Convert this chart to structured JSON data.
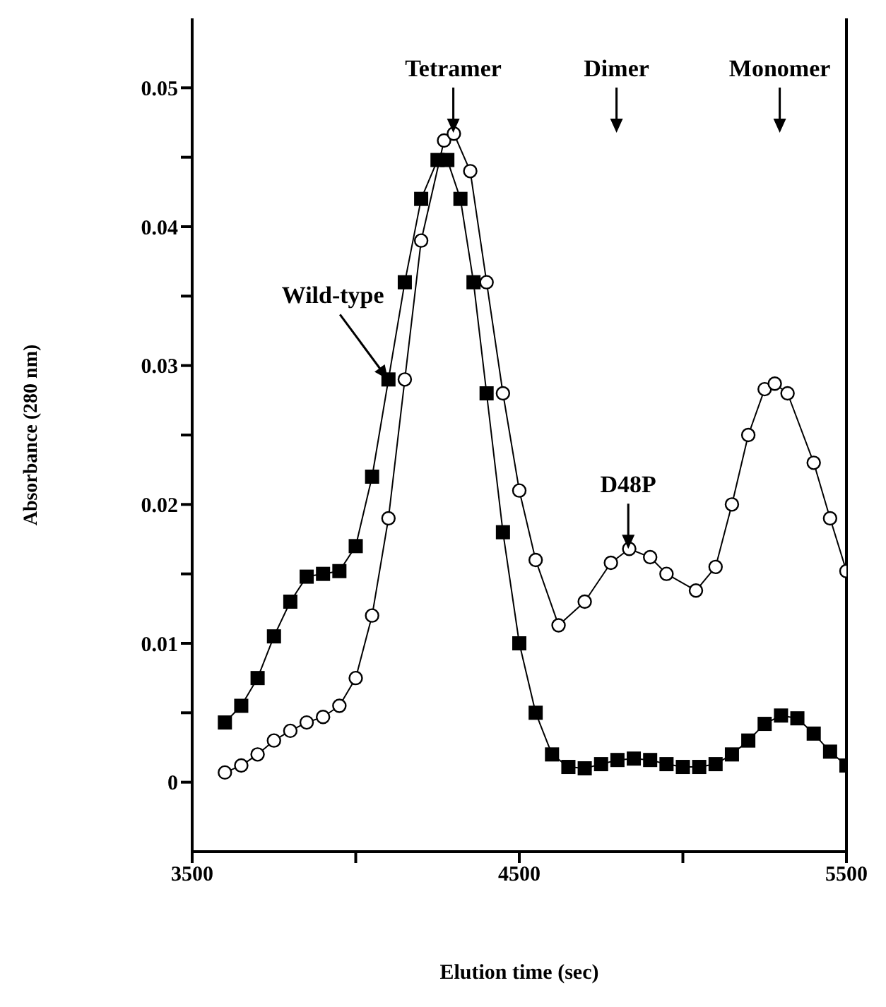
{
  "chart_data": {
    "type": "line",
    "xlabel": "Elution time (sec)",
    "ylabel": "Absorbance (280 nm)",
    "xlim": [
      3500,
      5500
    ],
    "xticks": [
      3500,
      {
        "value": 4000,
        "label": null
      },
      4500,
      {
        "value": 5000,
        "label": null
      },
      5500
    ],
    "ylim": [
      -0.005,
      0.055
    ],
    "yticks": [
      0,
      {
        "value": 0.005,
        "label": null
      },
      0.01,
      {
        "value": 0.015,
        "label": null
      },
      0.02,
      {
        "value": 0.025,
        "label": null
      },
      0.03,
      {
        "value": 0.035,
        "label": null
      },
      0.04,
      {
        "value": 0.045,
        "label": null
      },
      0.05
    ],
    "grid": false,
    "legend": false,
    "line_style": "solid",
    "series": [
      {
        "color": "#000000",
        "marker": "square",
        "x": [
          3600,
          3650,
          3700,
          3750,
          3800,
          3850,
          3900,
          3950,
          4000,
          4050,
          4100,
          4150,
          4200,
          4250,
          4280,
          4320,
          4360,
          4400,
          4450,
          4500,
          4550,
          4600,
          4650,
          4700,
          4750,
          4800,
          4850,
          4900,
          4950,
          5000,
          5050,
          5100,
          5150,
          5200,
          5250,
          5300,
          5350,
          5400,
          5450,
          5500
        ],
        "values": [
          0.0043,
          0.0055,
          0.0075,
          0.0105,
          0.013,
          0.0148,
          0.015,
          0.0152,
          0.017,
          0.022,
          0.029,
          0.036,
          0.042,
          0.0448,
          0.0448,
          0.042,
          0.036,
          0.028,
          0.018,
          0.01,
          0.005,
          0.002,
          0.0011,
          0.001,
          0.0013,
          0.0016,
          0.0017,
          0.0016,
          0.0013,
          0.0011,
          0.0011,
          0.0013,
          0.002,
          0.003,
          0.0042,
          0.0048,
          0.0046,
          0.0035,
          0.0022,
          0.0012
        ]
      },
      {
        "color": "#000000",
        "marker": "circle",
        "x": [
          3600,
          3650,
          3700,
          3750,
          3800,
          3850,
          3900,
          3950,
          4000,
          4050,
          4100,
          4150,
          4200,
          4270,
          4300,
          4350,
          4400,
          4450,
          4500,
          4550,
          4620,
          4700,
          4780,
          4836,
          4900,
          4950,
          5040,
          5100,
          5150,
          5200,
          5250,
          5281,
          5320,
          5400,
          5450,
          5500
        ],
        "values": [
          0.0007,
          0.0012,
          0.002,
          0.003,
          0.0037,
          0.0043,
          0.0047,
          0.0055,
          0.0075,
          0.012,
          0.019,
          0.029,
          0.039,
          0.0462,
          0.0467,
          0.044,
          0.036,
          0.028,
          0.021,
          0.016,
          0.0113,
          0.013,
          0.0158,
          0.0168,
          0.0162,
          0.015,
          0.0138,
          0.0155,
          0.02,
          0.025,
          0.0283,
          0.0287,
          0.028,
          0.023,
          0.019,
          0.0152
        ]
      }
    ],
    "annotations": [
      "Tetramer",
      "Dimer",
      "Monomer",
      {
        "text": "Wild-type",
        "x": 4100,
        "y": 0.029
      },
      {
        "text": "D48P",
        "x": 4836,
        "y": 0.0168
      }
    ]
  }
}
